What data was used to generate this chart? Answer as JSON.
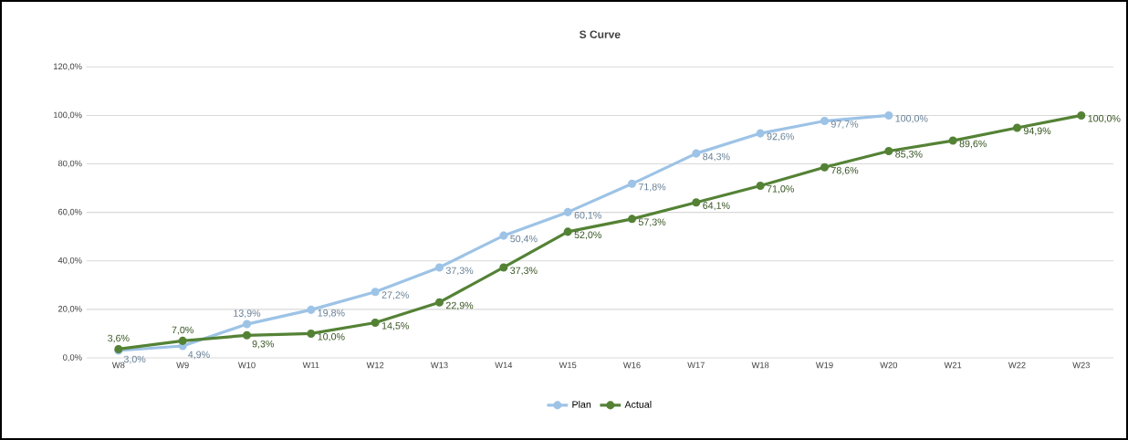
{
  "chart_data": {
    "type": "line",
    "title": "S Curve",
    "categories": [
      "W8",
      "W9",
      "W10",
      "W11",
      "W12",
      "W13",
      "W14",
      "W15",
      "W16",
      "W17",
      "W18",
      "W19",
      "W20",
      "W21",
      "W22",
      "W23"
    ],
    "series": [
      {
        "name": "Plan",
        "color": "#9dc3e6",
        "values": [
          3.0,
          4.9,
          13.9,
          19.8,
          27.2,
          37.3,
          50.4,
          60.1,
          71.8,
          84.3,
          92.6,
          97.7,
          100.0,
          null,
          null,
          null
        ],
        "value_labels": [
          "3,0%",
          "4,9%",
          "13,9%",
          "19,8%",
          "27,2%",
          "37,3%",
          "50,4%",
          "60,1%",
          "71,8%",
          "84,3%",
          "92,6%",
          "97,7%",
          "100,0%",
          null,
          null,
          null
        ]
      },
      {
        "name": "Actual",
        "color": "#548235",
        "values": [
          3.6,
          7.0,
          9.3,
          10.0,
          14.5,
          22.9,
          37.3,
          52.0,
          57.3,
          64.1,
          71.0,
          78.6,
          85.3,
          89.6,
          94.9,
          100.0
        ],
        "value_labels": [
          "3,6%",
          "7,0%",
          "9,3%",
          "10,0%",
          "14,5%",
          "22,9%",
          "37,3%",
          "52,0%",
          "57,3%",
          "64,1%",
          "71,0%",
          "78,6%",
          "85,3%",
          "89,6%",
          "94,9%",
          "100,0%"
        ]
      }
    ],
    "ylim": [
      0,
      120
    ],
    "yticks": [
      {
        "value": 0,
        "label": "0,0%"
      },
      {
        "value": 20,
        "label": "20,0%"
      },
      {
        "value": 40,
        "label": "40,0%"
      },
      {
        "value": 60,
        "label": "60,0%"
      },
      {
        "value": 80,
        "label": "80,0%"
      },
      {
        "value": 100,
        "label": "100,0%"
      },
      {
        "value": 120,
        "label": "120,0%"
      }
    ],
    "grid": "y",
    "legend": "bottom",
    "marker": "circle",
    "line_style": "solid"
  }
}
